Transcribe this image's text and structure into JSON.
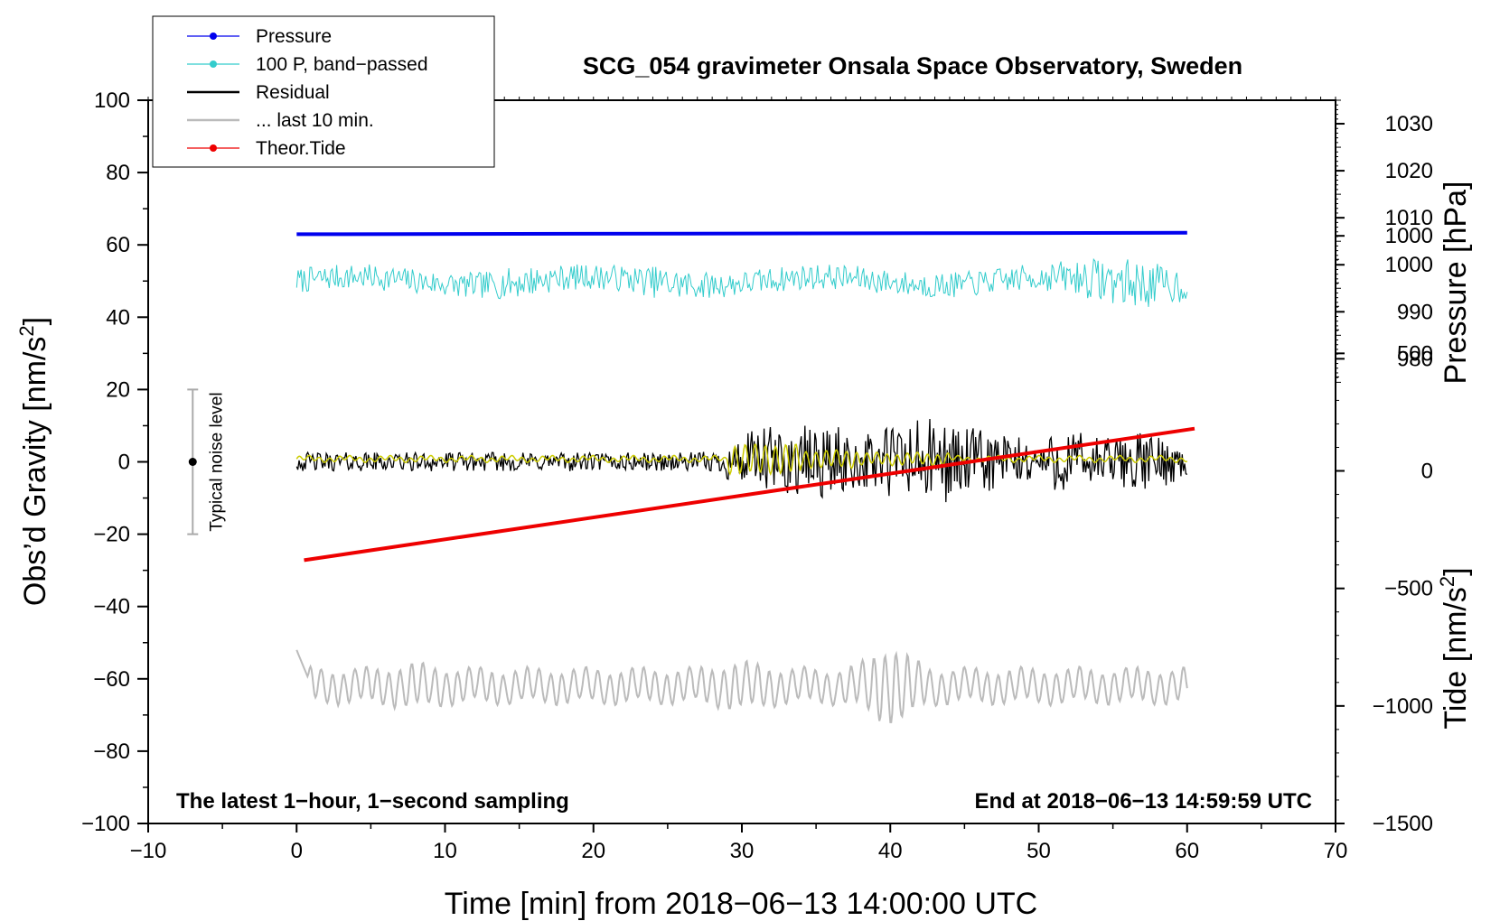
{
  "chart_data": {
    "type": "line",
    "title": "SCG_054 gravimeter Onsala Space Observatory, Sweden",
    "xlabel": "Time [min] from 2018−06−13 14:00:00 UTC",
    "ylabel_left_prefix": "Obs’d Gravity [nm/s",
    "ylabel_left_sup": "2",
    "ylabel_left_suffix": "]",
    "ylabel_right_pressure": "Pressure [hPa]",
    "ylabel_right_tide_prefix": "Tide [nm/s",
    "ylabel_right_tide_sup": "2",
    "ylabel_right_tide_suffix": "]",
    "xlim": [
      -10,
      70
    ],
    "ylim_left": [
      -100,
      100
    ],
    "x_ticks": [
      "−10",
      "0",
      "10",
      "20",
      "30",
      "40",
      "50",
      "60",
      "70"
    ],
    "y_ticks_left": [
      "100",
      "80",
      "60",
      "40",
      "20",
      "0",
      "−20",
      "−40",
      "−60",
      "−80",
      "−100"
    ],
    "pressure_ticks": [
      "1030",
      "1020",
      "1010",
      "1000",
      "990",
      "980"
    ],
    "tide_ticks": [
      "1000",
      "500",
      "0",
      "−500",
      "−1000",
      "−1500"
    ],
    "pressure_axis": {
      "unit": "hPa",
      "value_at_top_gravity_100": 1035,
      "left_units_per_hPa": 1.3
    },
    "tide_axis": {
      "unit": "nm/s^2",
      "value_at_bottom_gravity_minus100": -1500,
      "left_units_per_unit": 0.065
    },
    "legend": [
      {
        "label": "Pressure",
        "color": "#0000ee",
        "style": "line-dot"
      },
      {
        "label": "100 P, band−passed",
        "color": "#33cccc",
        "style": "line-dot"
      },
      {
        "label": "Residual",
        "color": "#000000",
        "style": "line"
      },
      {
        "label": "... last 10 min.",
        "color": "#bbbbbb",
        "style": "line"
      },
      {
        "label": "Theor.Tide",
        "color": "#ee0000",
        "style": "line-dot"
      }
    ],
    "series": [
      {
        "name": "Pressure",
        "axis": "pressure",
        "color": "#0000ee",
        "x": [
          0,
          60
        ],
        "values": [
          1006.5,
          1006.8
        ]
      },
      {
        "name": "100 P, band−passed",
        "axis": "gravity",
        "color": "#33cccc",
        "baseline": 50,
        "x": [
          0,
          60
        ],
        "amplitude_min_max": [
          -8,
          10
        ]
      },
      {
        "name": "Residual",
        "axis": "gravity",
        "color": "#000000",
        "baseline": 0,
        "x": [
          0,
          60
        ],
        "amplitude_min_max": [
          -13,
          12
        ]
      },
      {
        "name": "Residual (smoothed)",
        "axis": "gravity",
        "color": "#cccc00",
        "baseline": 0,
        "x": [
          0,
          60
        ]
      },
      {
        "name": "... last 10 min.",
        "axis": "gravity",
        "color": "#bbbbbb",
        "baseline": -62,
        "x": [
          0,
          60
        ],
        "amplitude_min_max": [
          -10,
          11
        ]
      },
      {
        "name": "Theor.Tide",
        "axis": "tide",
        "color": "#ee0000",
        "x": [
          0.5,
          60.5
        ],
        "values": [
          -380,
          180
        ]
      }
    ],
    "noise_bar": {
      "label": "Typical noise level",
      "x": -7,
      "center": 0,
      "range": [
        -20,
        20
      ]
    },
    "annotation_left": "The latest 1−hour, 1−second sampling",
    "annotation_right": "End at 2018−06−13 14:59:59 UTC"
  }
}
